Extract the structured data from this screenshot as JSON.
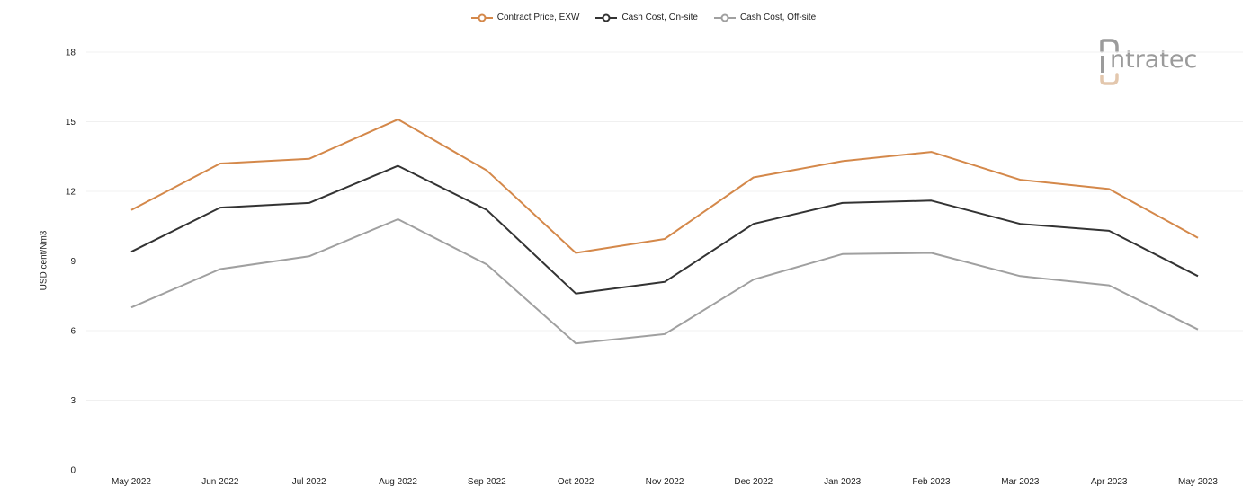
{
  "colors": {
    "contract": "#d4884a",
    "onsite": "#333333",
    "offsite": "#a0a0a0",
    "grid": "#f0f0f0",
    "logo_gray": "#9b9b9b",
    "logo_accent": "#e3c7ad"
  },
  "logo": {
    "text": "ntratec",
    "icon": "intratec-logo-icon"
  },
  "chart_data": {
    "type": "line",
    "title": "",
    "xlabel": "",
    "ylabel": "USD cent/Nm3",
    "ylim": [
      0,
      18
    ],
    "yticks": [
      "0",
      "3",
      "6",
      "9",
      "12",
      "15",
      "18"
    ],
    "grid": true,
    "legend_position": "top-center",
    "categories": [
      "May 2022",
      "Jun 2022",
      "Jul 2022",
      "Aug 2022",
      "Sep 2022",
      "Oct 2022",
      "Nov 2022",
      "Dec 2022",
      "Jan 2023",
      "Feb 2023",
      "Mar 2023",
      "Apr 2023",
      "May 2023"
    ],
    "series": [
      {
        "name": "Contract Price, EXW",
        "color": "#d4884a",
        "values": [
          11.2,
          13.2,
          13.4,
          15.1,
          12.9,
          9.35,
          9.95,
          12.6,
          13.3,
          13.7,
          12.5,
          12.1,
          10.0
        ]
      },
      {
        "name": "Cash Cost, On-site",
        "color": "#333333",
        "values": [
          9.4,
          11.3,
          11.5,
          13.1,
          11.2,
          7.6,
          8.1,
          10.6,
          11.5,
          11.6,
          10.6,
          10.3,
          8.35
        ]
      },
      {
        "name": "Cash Cost, Off-site",
        "color": "#a0a0a0",
        "values": [
          7.0,
          8.65,
          9.2,
          10.8,
          8.85,
          5.45,
          5.85,
          8.2,
          9.3,
          9.35,
          8.35,
          7.95,
          6.05
        ]
      }
    ]
  }
}
